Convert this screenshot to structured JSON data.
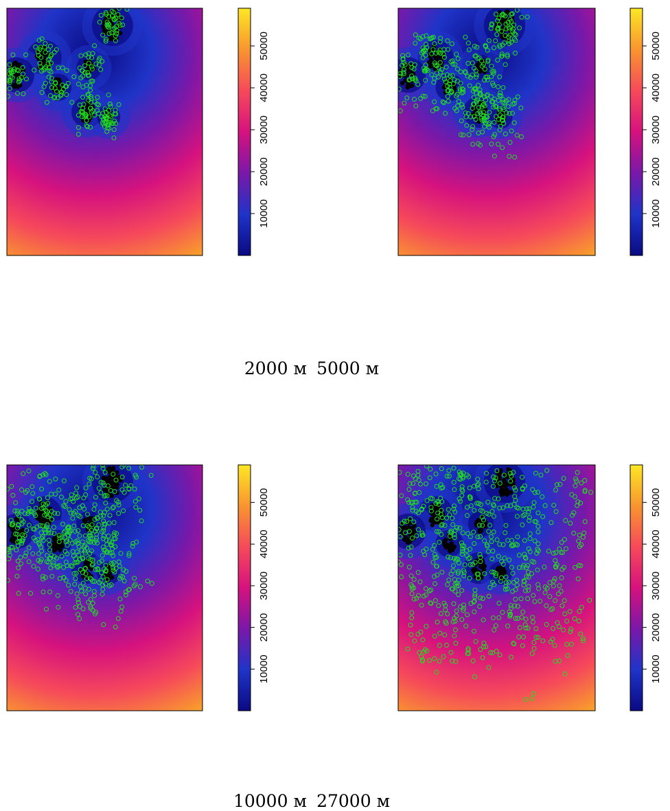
{
  "captions": {
    "row1": [
      "2000 м",
      "5000 м"
    ],
    "row2": [
      "10000 м",
      "27000 м"
    ]
  },
  "colors": {
    "palette": [
      "#0a0a82",
      "#1f34c8",
      "#7a18a8",
      "#d6127e",
      "#f64a5a",
      "#f89530",
      "#fde725"
    ],
    "circle": "#22dd22",
    "cluster": "#000000"
  },
  "chart_data": [
    {
      "type": "heatmap",
      "panel": "top-left",
      "colorbar": {
        "range": [
          0,
          59000
        ],
        "ticks": [
          10000,
          20000,
          30000,
          40000,
          50000
        ]
      },
      "sample_radius_m": 2000,
      "circle_count": 240
    },
    {
      "type": "heatmap",
      "panel": "top-right",
      "colorbar": {
        "range": [
          0,
          59000
        ],
        "ticks": [
          10000,
          20000,
          30000,
          40000,
          50000
        ]
      },
      "sample_radius_m": 5000,
      "circle_count": 380
    },
    {
      "type": "heatmap",
      "panel": "bottom-left",
      "colorbar": {
        "range": [
          0,
          59000
        ],
        "ticks": [
          10000,
          20000,
          30000,
          40000,
          50000
        ]
      },
      "sample_radius_m": 10000,
      "circle_count": 520
    },
    {
      "type": "heatmap",
      "panel": "bottom-right",
      "colorbar": {
        "range": [
          0,
          59000
        ],
        "ticks": [
          10000,
          20000,
          30000,
          40000,
          50000
        ]
      },
      "sample_radius_m": 27000,
      "circle_count": 720
    }
  ]
}
